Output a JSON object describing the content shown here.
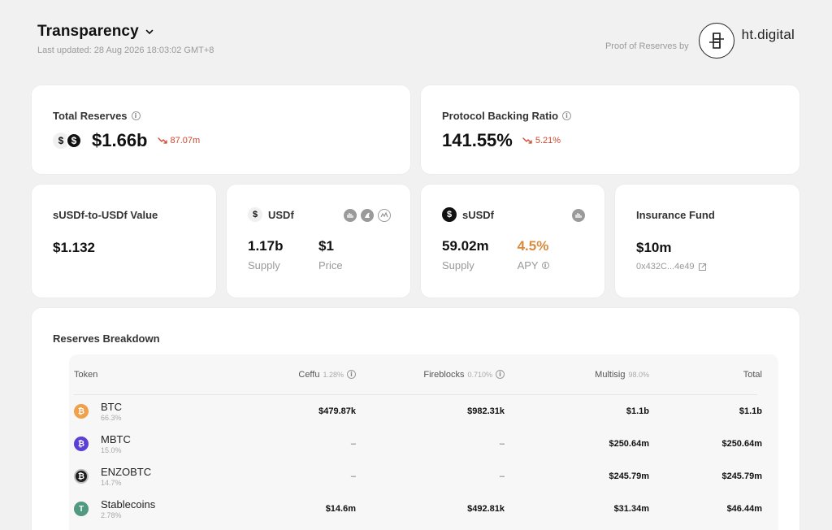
{
  "header": {
    "title": "Transparency",
    "last_updated": "Last updated: 28 Aug 2026 18:03:02 GMT+8",
    "proof_label": "Proof of Reserves by",
    "brand": "ht.digital"
  },
  "total_reserves": {
    "label": "Total Reserves",
    "value": "$1.66b",
    "change": "87.07m"
  },
  "backing_ratio": {
    "label": "Protocol Backing Ratio",
    "value": "141.55%",
    "change": "5.21%"
  },
  "susdf_value": {
    "label": "sUSDf-to-USDf Value",
    "value": "$1.132"
  },
  "usdf": {
    "label": "USDf",
    "supply": "1.17b",
    "supply_label": "Supply",
    "price": "$1",
    "price_label": "Price"
  },
  "susdf": {
    "label": "sUSDf",
    "supply": "59.02m",
    "supply_label": "Supply",
    "apy": "4.5%",
    "apy_label": "APY"
  },
  "insurance": {
    "label": "Insurance Fund",
    "value": "$10m",
    "address": "0x432C...4e49"
  },
  "reserves": {
    "title": "Reserves Breakdown",
    "columns": {
      "token": "Token",
      "ceffu": "Ceffu",
      "ceffu_pct": "1.28%",
      "fireblocks": "Fireblocks",
      "fireblocks_pct": "0.710%",
      "multisig": "Multisig",
      "multisig_pct": "98.0%",
      "total": "Total"
    },
    "rows": [
      {
        "name": "BTC",
        "share": "66.3%",
        "ceffu": "$479.87k",
        "fireblocks": "$982.31k",
        "multisig": "$1.1b",
        "total": "$1.1b",
        "color": "#f0a04b",
        "glyph": "₿"
      },
      {
        "name": "MBTC",
        "share": "15.0%",
        "ceffu": "–",
        "fireblocks": "–",
        "multisig": "$250.64m",
        "total": "$250.64m",
        "color": "#5b3fd8",
        "glyph": "₿"
      },
      {
        "name": "ENZOBTC",
        "share": "14.7%",
        "ceffu": "–",
        "fireblocks": "–",
        "multisig": "$245.79m",
        "total": "$245.79m",
        "color": "#1d1d1d",
        "glyph": "₿"
      },
      {
        "name": "Stablecoins",
        "share": "2.78%",
        "ceffu": "$14.6m",
        "fireblocks": "$492.81k",
        "multisig": "$31.34m",
        "total": "$46.44m",
        "color": "#4f9a80",
        "glyph": "T"
      }
    ]
  },
  "colors": {
    "negative": "#d0482e",
    "apy_orange": "#d98a3e"
  }
}
